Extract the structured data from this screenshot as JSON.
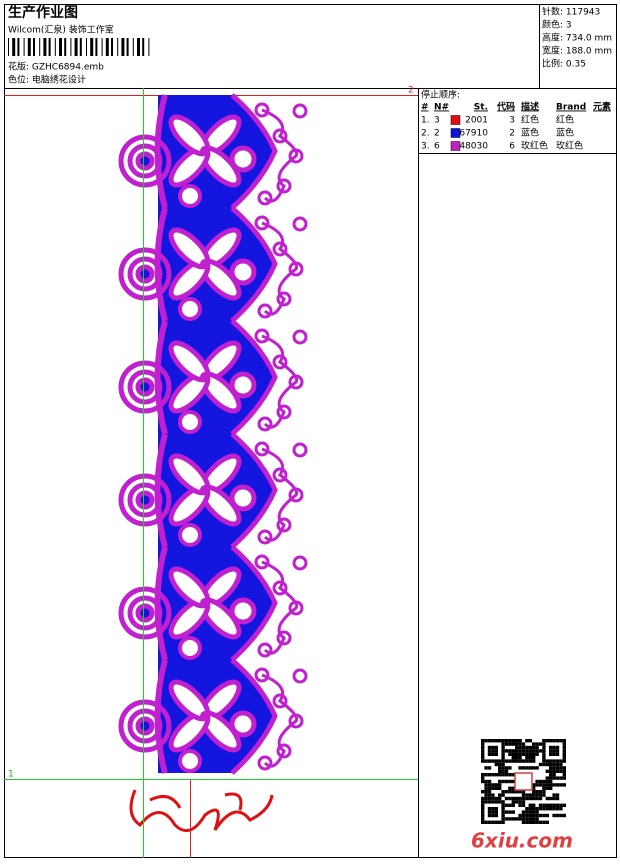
{
  "header": {
    "title": "生产作业图",
    "studio": "Wilcom(汇泉) 装饰工作室",
    "pattern": "花版: GZHC6894.emb",
    "color_position": "色位: 电脑绣花设计"
  },
  "info": [
    "针数: 117943",
    "颜色: 3",
    "高度: 734.0 mm",
    "宽度: 188.0 mm",
    "比例: 0.35"
  ],
  "stop_sequence": {
    "title": "停止顺序:",
    "columns": [
      "#",
      "N#",
      "St.",
      "代码",
      "描述",
      "Brand",
      "元素"
    ],
    "rows": [
      {
        "index": "1.",
        "needle": "3",
        "color": "#e01010",
        "stitches": "2001",
        "code": "3",
        "description": "红色",
        "brand": "红色"
      },
      {
        "index": "2.",
        "needle": "2",
        "color": "#1010e0",
        "stitches": "67910",
        "code": "2",
        "description": "蓝色",
        "brand": "蓝色"
      },
      {
        "index": "3.",
        "needle": "6",
        "color": "#c020c0",
        "stitches": "48030",
        "code": "6",
        "description": "玫红色",
        "brand": "玫红色"
      }
    ]
  },
  "markers": {
    "top": "2",
    "left": "1"
  },
  "watermark": "6xiu.com"
}
